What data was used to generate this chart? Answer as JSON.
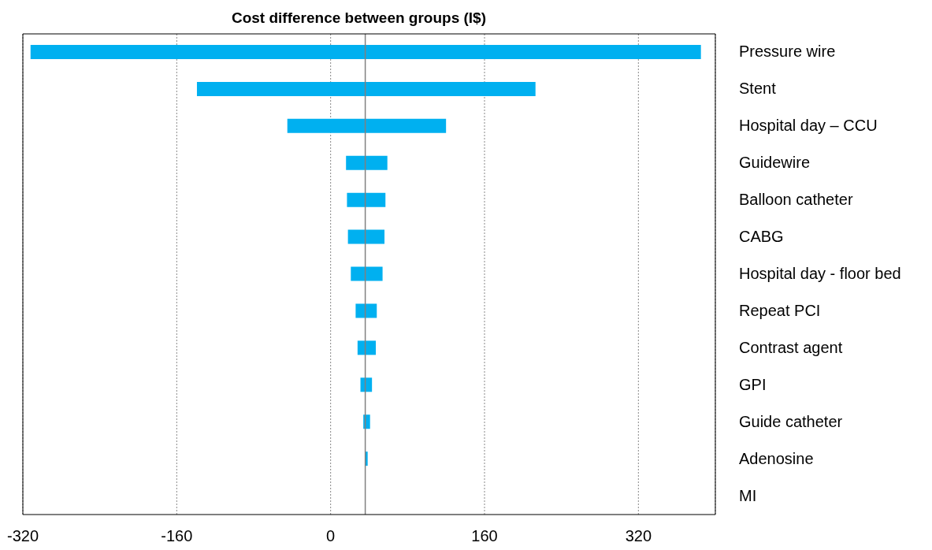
{
  "chart_data": {
    "type": "bar",
    "orientation": "horizontal",
    "title": "Cost difference between groups (I$)",
    "categories": [
      "Pressure wire",
      "Stent",
      "Hospital day – CCU",
      "Guidewire",
      "Balloon catheter",
      "CABG",
      "Hospital day - floor bed",
      "Repeat PCI",
      "Contrast agent",
      "GPI",
      "Guide catheter",
      "Adenosine",
      "MI"
    ],
    "base": [
      -312,
      -139,
      -45,
      16,
      17,
      18,
      21,
      26,
      28,
      31,
      34,
      35.5,
      null
    ],
    "values": [
      697,
      352,
      165,
      43,
      40,
      38,
      33,
      22,
      19,
      12,
      7,
      3,
      null
    ],
    "color": "#00b0f0",
    "xlim": [
      -320,
      400
    ],
    "xticks": [
      -320,
      -160,
      0,
      160,
      320
    ],
    "grid": "x",
    "ref_lines": [
      {
        "axis": "x",
        "value": 36,
        "color": "#808080",
        "line_style": "solid"
      }
    ]
  }
}
